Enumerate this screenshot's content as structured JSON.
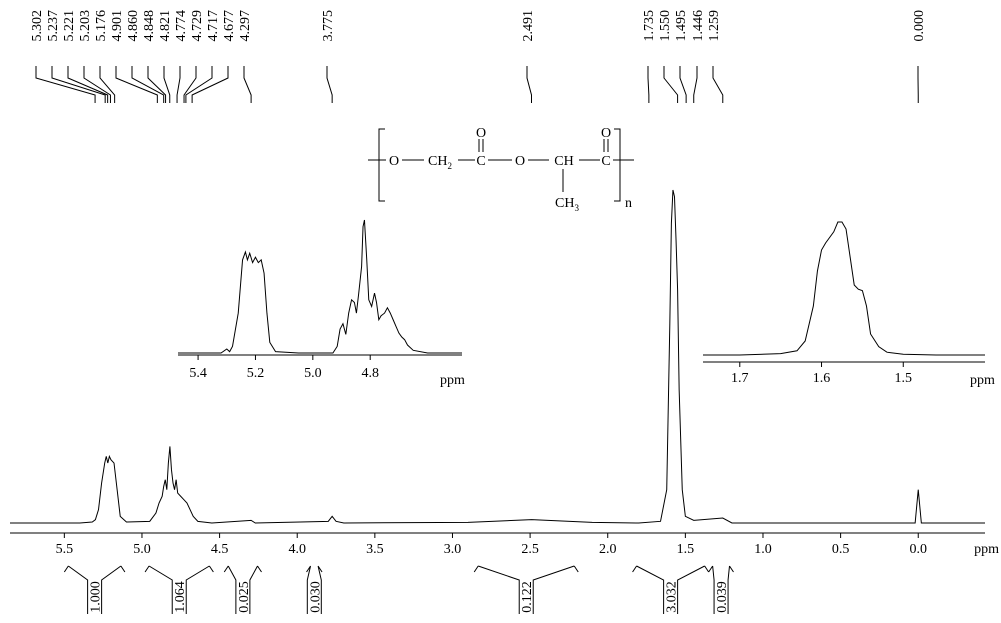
{
  "chart_data": [
    {
      "type": "line",
      "x_label": "ppm",
      "xlim": [
        5.85,
        -0.43
      ],
      "ylim": [
        0,
        100
      ],
      "xticks": [
        5.5,
        {
          "value": 5,
          "label": "5.0"
        },
        4.5,
        {
          "value": 4,
          "label": "4.0"
        },
        3.5,
        {
          "value": 3,
          "label": "3.0"
        },
        2.5,
        {
          "value": 2,
          "label": "2.0"
        },
        1.5,
        {
          "value": 1,
          "label": "1.0"
        },
        0.5,
        {
          "value": 0,
          "label": "0.0"
        }
      ],
      "color": "#000000",
      "x": [
        5.85,
        5.4,
        5.32,
        5.3,
        5.28,
        5.26,
        5.24,
        5.23,
        5.22,
        5.21,
        5.2,
        5.18,
        5.16,
        5.14,
        5.1,
        4.95,
        4.91,
        4.89,
        4.87,
        4.86,
        4.85,
        4.84,
        4.83,
        4.82,
        4.81,
        4.8,
        4.79,
        4.78,
        4.77,
        4.75,
        4.73,
        4.71,
        4.69,
        4.67,
        4.64,
        4.55,
        4.297,
        4.27,
        3.8,
        3.775,
        3.75,
        3.7,
        2.9,
        2.49,
        2.1,
        1.8,
        1.66,
        1.62,
        1.6,
        1.59,
        1.58,
        1.57,
        1.56,
        1.55,
        1.54,
        1.52,
        1.5,
        1.446,
        1.259,
        1.2,
        0.02,
        0,
        -0.02,
        -0.43
      ],
      "values": [
        0,
        0,
        0.3,
        1,
        4,
        12,
        18,
        20,
        18,
        20,
        19,
        18,
        10,
        2,
        0.3,
        0.5,
        3,
        6,
        8,
        11,
        13,
        10,
        18,
        23,
        16,
        12,
        10,
        13,
        9,
        8,
        7,
        6,
        4,
        2,
        0.5,
        0,
        0.8,
        0,
        0.5,
        2,
        0.5,
        0,
        0.2,
        1,
        0.2,
        0,
        0.5,
        10,
        60,
        90,
        100,
        98,
        85,
        70,
        40,
        10,
        2,
        0.8,
        1.5,
        0,
        0,
        10,
        0,
        0
      ],
      "peaks": {
        "values": [
          5.302,
          5.237,
          5.221,
          5.203,
          5.176,
          4.901,
          4.86,
          4.848,
          4.821,
          4.774,
          4.729,
          4.717,
          4.677,
          4.297,
          3.775,
          2.491,
          1.735,
          1.55,
          1.495,
          1.446,
          1.259,
          0
        ],
        "value_labels": [
          "5.302",
          "5.237",
          "5.221",
          "5.203",
          "5.176",
          "4.901",
          "4.860",
          "4.848",
          "4.821",
          "4.774",
          "4.729",
          "4.717",
          "4.677",
          "4.297",
          "3.775",
          "2.491",
          "1.735",
          "1.550",
          "1.495",
          "1.446",
          "1.259",
          "0.000"
        ]
      },
      "integrals": {
        "values": [
          1,
          1.064,
          0.025,
          0.03,
          0.122,
          3.032,
          0.039
        ],
        "value_labels": [
          "1.000",
          "1.064",
          "0.025",
          "0.030",
          "0.122",
          "3.032",
          "0.039"
        ],
        "from": [
          5.5,
          4.98,
          4.47,
          3.94,
          2.86,
          1.84,
          1.35
        ],
        "to": [
          5.11,
          4.54,
          4.23,
          3.84,
          2.19,
          1.35,
          1.19
        ]
      }
    },
    {
      "type": "line",
      "x_label": "ppm",
      "xlim": [
        5.47,
        4.48
      ],
      "ylim": [
        0,
        100
      ],
      "xticks": [
        5.4,
        5.2,
        {
          "value": 5,
          "label": "5.0"
        },
        4.8
      ],
      "color": "#000000",
      "x": [
        5.47,
        5.32,
        5.3,
        5.29,
        5.28,
        5.26,
        5.245,
        5.235,
        5.228,
        5.22,
        5.21,
        5.2,
        5.19,
        5.18,
        5.17,
        5.16,
        5.15,
        5.13,
        5.05,
        4.93,
        4.915,
        4.905,
        4.895,
        4.885,
        4.875,
        4.865,
        4.855,
        4.848,
        4.84,
        4.83,
        4.825,
        4.82,
        4.812,
        4.805,
        4.795,
        4.785,
        4.778,
        4.77,
        4.762,
        4.75,
        4.74,
        4.73,
        4.72,
        4.71,
        4.7,
        4.69,
        4.68,
        4.67,
        4.65,
        4.6,
        4.48
      ],
      "values": [
        0,
        0,
        3,
        1,
        5,
        30,
        70,
        76,
        70,
        75,
        68,
        72,
        68,
        70,
        60,
        30,
        8,
        1,
        0,
        0,
        5,
        18,
        22,
        14,
        30,
        40,
        38,
        30,
        45,
        65,
        95,
        100,
        70,
        40,
        35,
        45,
        38,
        25,
        28,
        30,
        34,
        30,
        25,
        20,
        15,
        12,
        10,
        6,
        2,
        0,
        0
      ]
    },
    {
      "type": "line",
      "x_label": "ppm",
      "xlim": [
        1.745,
        1.4
      ],
      "ylim": [
        0,
        100
      ],
      "xticks": [
        1.7,
        1.6,
        1.5
      ],
      "color": "#000000",
      "x": [
        1.745,
        1.7,
        1.65,
        1.63,
        1.62,
        1.61,
        1.605,
        1.6,
        1.595,
        1.585,
        1.58,
        1.575,
        1.57,
        1.565,
        1.56,
        1.555,
        1.55,
        1.545,
        1.54,
        1.53,
        1.52,
        1.5,
        1.46,
        1.4
      ],
      "values": [
        0,
        0,
        1,
        3,
        10,
        35,
        60,
        75,
        80,
        88,
        95,
        95,
        90,
        70,
        50,
        47,
        46,
        35,
        15,
        6,
        2,
        0.5,
        0,
        0
      ]
    }
  ],
  "structure": {
    "o1": "O",
    "ch": "CH",
    "ch_sub": "2",
    "c1": "C",
    "o_carbonyl1": "O",
    "o2": "O",
    "ch_b": "CH",
    "c2": "C",
    "o_carbonyl2": "O",
    "ch3": "CH",
    "ch3_sub": "3",
    "n": "n"
  }
}
